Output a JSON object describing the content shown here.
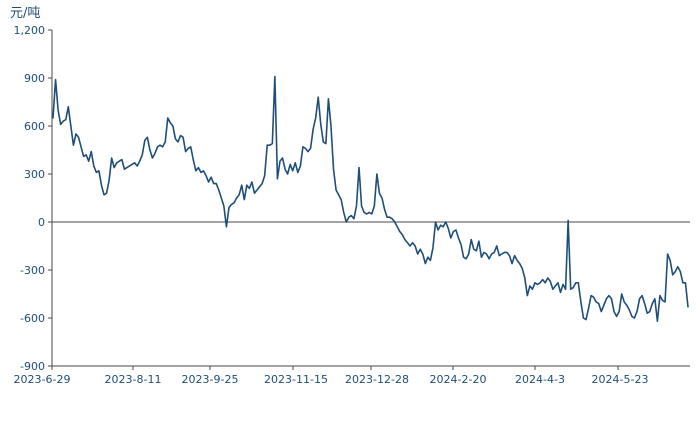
{
  "chart_data": {
    "type": "line",
    "title": "",
    "xlabel": "",
    "ylabel": "元/吨",
    "ylim": [
      -900,
      1200
    ],
    "yticks": [
      1200,
      900,
      600,
      300,
      0,
      -300,
      -600,
      -900
    ],
    "ytick_labels": [
      "1,200",
      "900",
      "600",
      "300",
      "0",
      "-300",
      "-600",
      "-900"
    ],
    "xtick_labels": [
      "2023-6-29",
      "2023-8-11",
      "2023-9-25",
      "2023-11-15",
      "2023-12-28",
      "2024-2-20",
      "2024-4-3",
      "2024-5-23"
    ],
    "grid": false,
    "legend": "none",
    "colors": {
      "line": "#1f4e79",
      "axis": "#4a4a4a",
      "text": "#1f4e79"
    },
    "series": [
      {
        "values": [
          650,
          890,
          700,
          610,
          630,
          640,
          720,
          600,
          480,
          550,
          530,
          470,
          410,
          420,
          380,
          440,
          350,
          310,
          320,
          230,
          170,
          180,
          260,
          400,
          340,
          370,
          380,
          390,
          330,
          340,
          350,
          360,
          370,
          350,
          380,
          420,
          510,
          530,
          450,
          400,
          430,
          470,
          480,
          470,
          500,
          650,
          620,
          600,
          520,
          500,
          540,
          530,
          440,
          460,
          470,
          390,
          320,
          340,
          310,
          320,
          290,
          250,
          280,
          240,
          240,
          200,
          150,
          100,
          -30,
          90,
          110,
          120,
          150,
          170,
          230,
          140,
          230,
          210,
          250,
          180,
          200,
          220,
          240,
          290,
          480,
          480,
          490,
          910,
          270,
          380,
          400,
          330,
          300,
          360,
          320,
          370,
          310,
          350,
          470,
          460,
          440,
          460,
          580,
          650,
          780,
          610,
          500,
          490,
          770,
          600,
          330,
          200,
          170,
          140,
          60,
          0,
          30,
          40,
          20,
          100,
          340,
          100,
          60,
          50,
          60,
          50,
          100,
          300,
          180,
          150,
          80,
          30,
          30,
          20,
          0,
          -30,
          -60,
          -80,
          -110,
          -130,
          -150,
          -130,
          -150,
          -200,
          -170,
          -200,
          -260,
          -220,
          -240,
          -160,
          0,
          -50,
          -20,
          -30,
          0,
          -40,
          -100,
          -60,
          -50,
          -100,
          -140,
          -220,
          -230,
          -200,
          -110,
          -170,
          -180,
          -120,
          -220,
          -190,
          -200,
          -230,
          -200,
          -190,
          -150,
          -210,
          -200,
          -190,
          -190,
          -210,
          -260,
          -210,
          -240,
          -260,
          -290,
          -350,
          -460,
          -400,
          -420,
          -380,
          -390,
          -380,
          -360,
          -380,
          -350,
          -370,
          -420,
          -400,
          -380,
          -440,
          -390,
          -420,
          10,
          -420,
          -410,
          -380,
          -380,
          -500,
          -600,
          -610,
          -540,
          -460,
          -470,
          -500,
          -510,
          -560,
          -520,
          -480,
          -460,
          -480,
          -560,
          -590,
          -560,
          -450,
          -500,
          -520,
          -550,
          -590,
          -600,
          -560,
          -480,
          -460,
          -510,
          -570,
          -560,
          -510,
          -480,
          -620,
          -460,
          -490,
          -500,
          -200,
          -240,
          -330,
          -310,
          -280,
          -310,
          -380,
          -380,
          -530
        ]
      }
    ]
  }
}
